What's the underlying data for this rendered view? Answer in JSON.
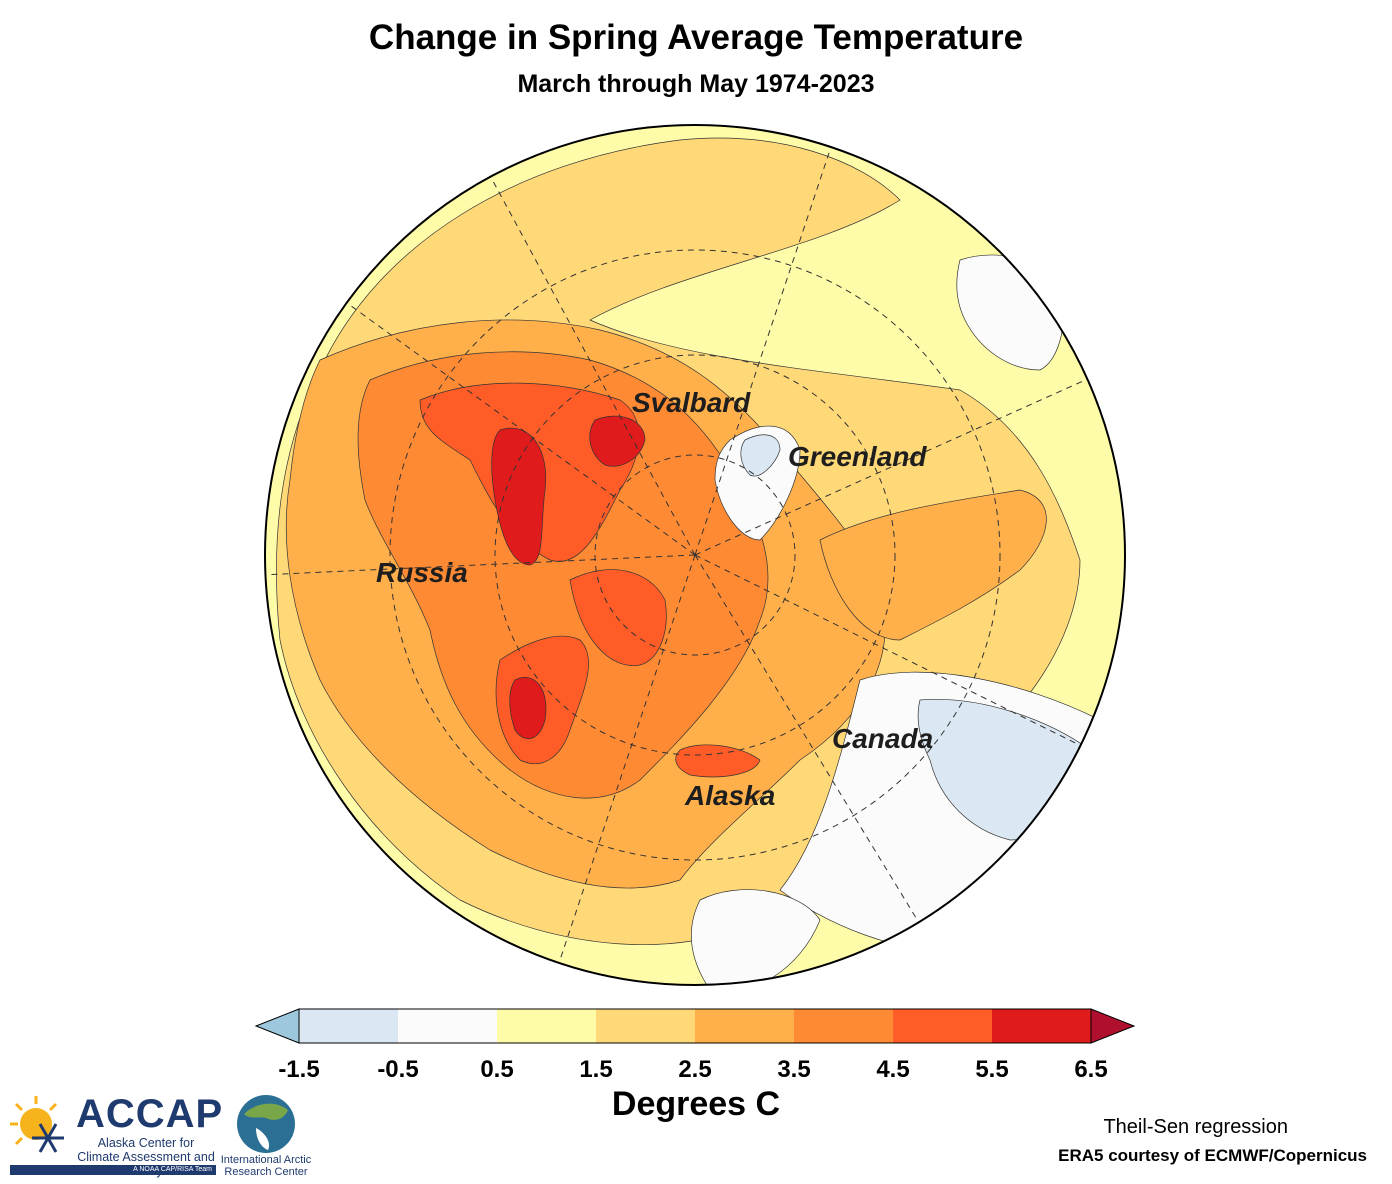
{
  "title": "Change in Spring Average Temperature",
  "subtitle": "March through May 1974-2023",
  "labels": {
    "svalbard": "Svalbard",
    "greenland": "Greenland",
    "russia": "Russia",
    "canada": "Canada",
    "alaska": "Alaska"
  },
  "colorbar": {
    "units": "Degrees C",
    "ticks": [
      "-1.5",
      "-0.5",
      "0.5",
      "1.5",
      "2.5",
      "3.5",
      "4.5",
      "5.5",
      "6.5"
    ],
    "colors": {
      "under": "#9cc7dd",
      "bins": [
        "#dbe8f3",
        "#fbfbfb",
        "#fefca8",
        "#ffd878",
        "#ffb04a",
        "#ff8a34",
        "#ff5c28",
        "#e01b1c"
      ],
      "over": "#b10f2e"
    }
  },
  "footer": {
    "method": "Theil-Sen regression",
    "credit": "ERA5 courtesy of ECMWF/Copernicus"
  },
  "logos": {
    "accap": {
      "name": "ACCAP",
      "subtitle": "Alaska Center for Climate Assessment and Policy",
      "bar": "A NOAA CAP/RISA Team"
    },
    "iarc": {
      "name": "International Arctic Research Center"
    }
  }
}
